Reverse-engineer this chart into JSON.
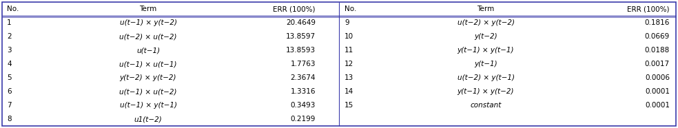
{
  "col_headers": [
    "No.",
    "Term",
    "ERR (100%)"
  ],
  "left_rows": [
    [
      "1",
      "u(t−1) × y(t−2)",
      "20.4649"
    ],
    [
      "2",
      "u(t−2) × u(t−2)",
      "13.8597"
    ],
    [
      "3",
      "u(t−1)",
      "13.8593"
    ],
    [
      "4",
      "u(t−1) × u(t−1)",
      "1.7763"
    ],
    [
      "5",
      "y(t−2) × y(t−2)",
      "2.3674"
    ],
    [
      "6",
      "u(t−1) × u(t−2)",
      "1.3316"
    ],
    [
      "7",
      "u(t−1) × y(t−1)",
      "0.3493"
    ],
    [
      "8",
      "u1(t−2)",
      "0.2199"
    ]
  ],
  "right_rows": [
    [
      "9",
      "u(t−2) × y(t−2)",
      "0.1816"
    ],
    [
      "10",
      "y(t−2)",
      "0.0669"
    ],
    [
      "11",
      "y(t−1) × y(t−1)",
      "0.0188"
    ],
    [
      "12",
      "y(t−1)",
      "0.0017"
    ],
    [
      "13",
      "u(t−2) × y(t−1)",
      "0.0006"
    ],
    [
      "14",
      "y(t−1) × y(t−2)",
      "0.0001"
    ],
    [
      "15",
      "constant",
      "0.0001"
    ]
  ],
  "border_color": "#3a3aaa",
  "bg_color": "white",
  "text_color": "black",
  "font_size": 7.5,
  "header_font_size": 7.5
}
